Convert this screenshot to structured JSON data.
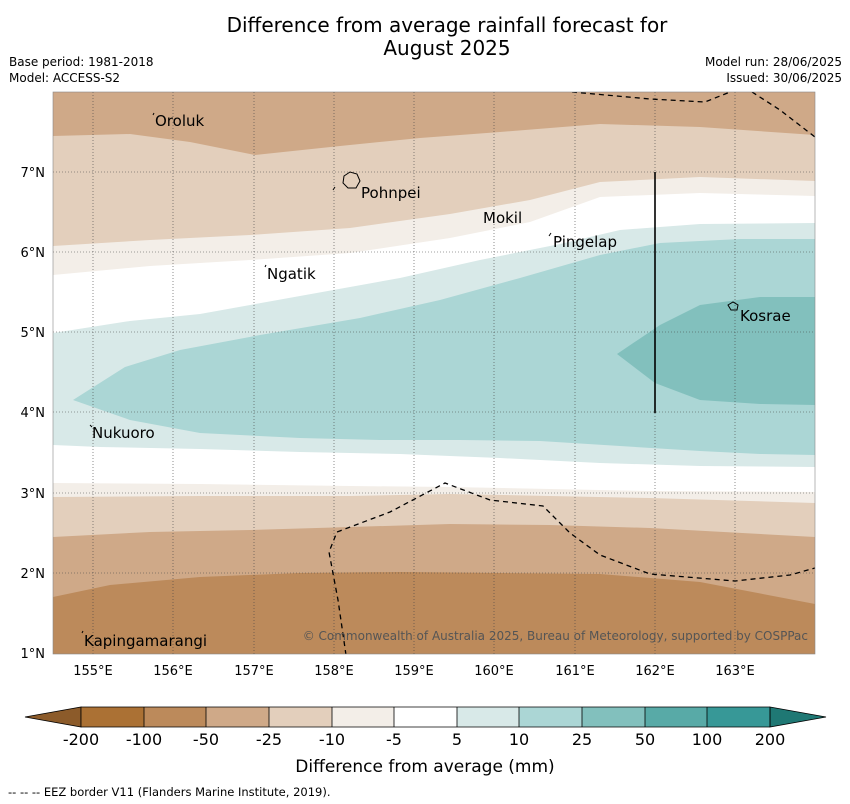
{
  "title": {
    "line1": "Difference from average rainfall forecast for",
    "line2": "August 2025"
  },
  "meta_left": {
    "base_period": "Base period: 1981-2018",
    "model": "Model: ACCESS-S2"
  },
  "meta_right": {
    "model_run": "Model run: 28/06/2025",
    "issued": "Issued: 30/06/2025"
  },
  "map": {
    "lon_range": [
      154.5,
      164
    ],
    "lat_range": [
      1,
      8
    ],
    "lon_ticks": [
      "155°E",
      "156°E",
      "157°E",
      "158°E",
      "159°E",
      "160°E",
      "161°E",
      "162°E",
      "163°E"
    ],
    "lat_ticks": [
      "7°N",
      "6°N",
      "5°N",
      "4°N",
      "3°N",
      "2°N",
      "1°N"
    ],
    "places": [
      {
        "name": "Oroluk",
        "lon": 155.75,
        "lat": 7.6
      },
      {
        "name": "Pohnpei",
        "lon": 158.2,
        "lat": 6.9
      },
      {
        "name": "Mokil",
        "lon": 159.8,
        "lat": 6.65
      },
      {
        "name": "Pingelap",
        "lon": 160.7,
        "lat": 6.2
      },
      {
        "name": "Ngatik",
        "lon": 157.1,
        "lat": 5.8
      },
      {
        "name": "Kosrae",
        "lon": 162.95,
        "lat": 5.3
      },
      {
        "name": "Nukuoro",
        "lon": 154.95,
        "lat": 3.85
      },
      {
        "name": "Kapingamarangi",
        "lon": 154.8,
        "lat": 1.1
      }
    ],
    "copyright": "© Commonwealth of Australia 2025, Bureau of Meteorology, supported by COSPPac"
  },
  "colorbar": {
    "labels": [
      "-200",
      "-100",
      "-50",
      "-25",
      "-10",
      "-5",
      "5",
      "10",
      "25",
      "50",
      "100",
      "200"
    ],
    "colors": [
      "#ab7134",
      "#bc8a5b",
      "#cfa988",
      "#e3cfbc",
      "#f3eee8",
      "#ffffff",
      "#d8e9e8",
      "#abd6d5",
      "#82c0bd",
      "#58aaa7",
      "#379897"
    ],
    "under_color": "#8c5b2a",
    "over_color": "#1f7874",
    "label": "Difference from average (mm)"
  },
  "footnote": "--  --  -- EEZ border V11 (Flanders Marine Institute, 2019)."
}
